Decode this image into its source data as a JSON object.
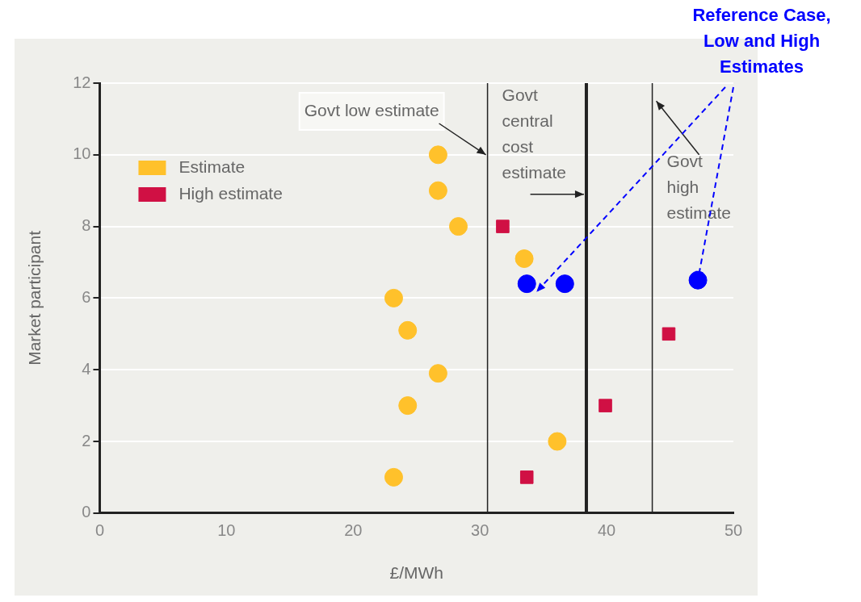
{
  "chart_data": {
    "type": "scatter",
    "xlabel": "£/MWh",
    "ylabel": "Market participant",
    "xlim": [
      0,
      50
    ],
    "ylim": [
      0,
      12
    ],
    "xticks": [
      0,
      10,
      20,
      30,
      40,
      50
    ],
    "yticks": [
      0,
      2,
      4,
      6,
      8,
      10,
      12
    ],
    "grid": "y",
    "legend": "top left",
    "series": [
      {
        "name": "Estimate",
        "color": "#ffc12b",
        "marker": "circle",
        "x": [
          26.7,
          26.7,
          28.3,
          33.5,
          23.2,
          24.3,
          26.7,
          24.3,
          36.1,
          23.2
        ],
        "values": [
          10,
          9,
          8,
          7.1,
          6,
          5.1,
          3.9,
          3,
          2,
          1
        ]
      },
      {
        "name": "High estimate",
        "color": "#d01044",
        "marker": "square",
        "x": [
          31.8,
          44.9,
          39.9,
          33.7
        ],
        "values": [
          8,
          5,
          3,
          1
        ]
      },
      {
        "color": "#0000ff",
        "marker": "circle",
        "x": [
          33.7,
          36.7,
          47.2
        ],
        "values": [
          6.4,
          6.4,
          6.5
        ]
      }
    ],
    "ref_lines": [
      {
        "axis": "x",
        "value": 30.6,
        "label": "Govt low estimate",
        "color": "#222222"
      },
      {
        "axis": "x",
        "value": 38.4,
        "label": "Govt central cost estimate",
        "color": "#222222"
      },
      {
        "axis": "x",
        "value": 43.6,
        "label": "Govt high estimate",
        "color": "#222222"
      }
    ],
    "annotations": [
      {
        "text": "Reference Case, Low and High Estimates",
        "x": 47.2,
        "y": 6.5
      }
    ]
  }
}
